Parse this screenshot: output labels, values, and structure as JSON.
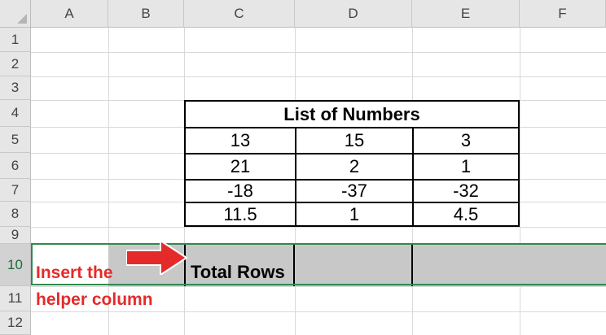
{
  "columns": [
    "A",
    "B",
    "C",
    "D",
    "E",
    "F"
  ],
  "rows": [
    "1",
    "2",
    "3",
    "4",
    "5",
    "6",
    "7",
    "8",
    "9",
    "10",
    "11",
    "12"
  ],
  "table": {
    "title": "List of Numbers",
    "cells": [
      [
        "13",
        "15",
        "3"
      ],
      [
        "21",
        "2",
        "1"
      ],
      [
        "-18",
        "-37",
        "-32"
      ],
      [
        "11.5",
        "1",
        "4.5"
      ]
    ]
  },
  "row10": {
    "label": "Total Rows"
  },
  "annotation": {
    "line1": "Insert the",
    "line2": "helper column",
    "color": "#e52a2a"
  },
  "colors": {
    "selection_green": "#2e8a4f",
    "header_bg": "#e6e6e6",
    "row_fill": "#c8c8c8"
  },
  "icons": {
    "arrow": "right-arrow-icon",
    "corner": "select-all-icon"
  }
}
